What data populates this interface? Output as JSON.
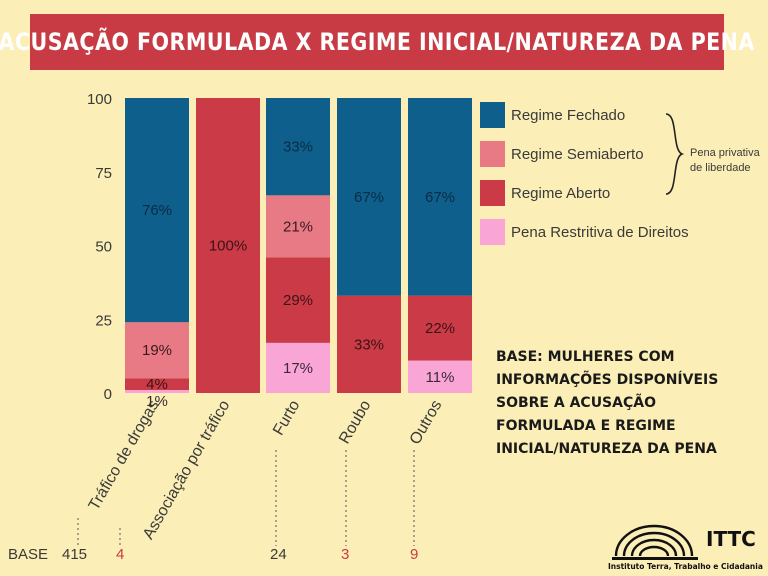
{
  "title": "ACUSAÇÃO FORMULADA X REGIME INICIAL/NATUREZA DA PENA",
  "colors": {
    "background": "#fbeeb6",
    "title_bg": "#c83b45",
    "fechado": "#0e5f8c",
    "semiaberto": "#e87a86",
    "aberto": "#cb3a47",
    "restritiva": "#f9a6d6",
    "base_highlight": "#cb3a47"
  },
  "chart_data": {
    "type": "bar",
    "stacked": true,
    "ylim": [
      0,
      100
    ],
    "yticks": [
      0,
      25,
      50,
      75,
      100
    ],
    "categories": [
      "Tráfico de drogas",
      "Associação por tráfico",
      "Furto",
      "Roubo",
      "Outros"
    ],
    "series": [
      {
        "name": "Pena Restritiva de Direitos",
        "key": "restritiva",
        "values": [
          1,
          0,
          17,
          0,
          11
        ],
        "labels": [
          "1%",
          "",
          "17%",
          "",
          "11%"
        ]
      },
      {
        "name": "Regime Aberto",
        "key": "aberto",
        "values": [
          4,
          100,
          29,
          33,
          22
        ],
        "labels": [
          "4%",
          "100%",
          "29%",
          "33%",
          "22%"
        ]
      },
      {
        "name": "Regime Semiaberto",
        "key": "semiaberto",
        "values": [
          19,
          0,
          21,
          0,
          0
        ],
        "labels": [
          "19%",
          "",
          "21%",
          "",
          ""
        ]
      },
      {
        "name": "Regime Fechado",
        "key": "fechado",
        "values": [
          76,
          0,
          33,
          67,
          67
        ],
        "labels": [
          "76%",
          "",
          "33%",
          "67%",
          "67%"
        ]
      }
    ]
  },
  "legend": [
    {
      "label": "Regime Fechado",
      "key": "fechado"
    },
    {
      "label": "Regime Semiaberto",
      "key": "semiaberto"
    },
    {
      "label": "Regime Aberto",
      "key": "aberto"
    },
    {
      "label": "Pena Restritiva de Direitos",
      "key": "restritiva"
    }
  ],
  "brace_label": "Pena privativa de liberdade",
  "base_note": "BASE: MULHERES COM INFORMAÇÕES DISPONÍVEIS SOBRE A ACUSAÇÃO FORMULADA E REGIME INICIAL/NATUREZA DA PENA",
  "base": {
    "label": "BASE",
    "values": [
      {
        "value": "415",
        "highlight": false
      },
      {
        "value": "4",
        "highlight": true
      },
      {
        "value": "24",
        "highlight": false
      },
      {
        "value": "3",
        "highlight": true
      },
      {
        "value": "9",
        "highlight": true
      }
    ]
  },
  "logo": {
    "name": "ITTC",
    "subtitle": "Instituto Terra, Trabalho e Cidadania"
  }
}
